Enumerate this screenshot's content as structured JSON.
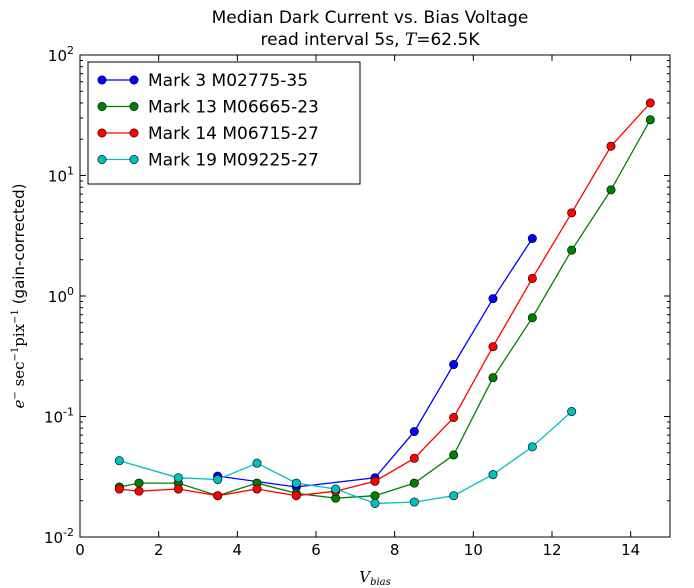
{
  "chart_data": {
    "type": "line",
    "title": "Median Dark Current vs. Bias Voltage",
    "subtitle": "read interval 5s, T=62.5K",
    "xlabel": "V_bias",
    "ylabel": "e⁻ sec⁻¹ pix⁻¹ (gain-corrected)",
    "xlim": [
      0,
      15
    ],
    "ylim": [
      0.01,
      100
    ],
    "yscale": "log",
    "xticks": [
      "0",
      "2",
      "4",
      "6",
      "8",
      "10",
      "12",
      "14"
    ],
    "yticks": [
      "10-2",
      "10-1",
      "100",
      "101",
      "102"
    ],
    "grid": false,
    "legend_position": "top-left",
    "series": [
      {
        "name": "Mark 3 M02775-35",
        "color": "#0000ff",
        "x": [
          3.5,
          5.5,
          7.5,
          8.5,
          9.5,
          10.5,
          11.5
        ],
        "y": [
          0.032,
          0.026,
          0.031,
          0.075,
          0.27,
          0.95,
          3.0
        ]
      },
      {
        "name": "Mark 13 M06665-23",
        "color": "#008000",
        "x": [
          1.0,
          1.5,
          2.5,
          3.5,
          4.5,
          5.5,
          6.5,
          7.5,
          8.5,
          9.5,
          10.5,
          11.5,
          12.5,
          13.5,
          14.5
        ],
        "y": [
          0.026,
          0.028,
          0.028,
          0.022,
          0.028,
          0.023,
          0.021,
          0.022,
          0.028,
          0.048,
          0.21,
          0.66,
          2.4,
          7.6,
          29
        ]
      },
      {
        "name": "Mark 14 M06715-27",
        "color": "#ff0000",
        "x": [
          1.0,
          1.5,
          2.5,
          3.5,
          4.5,
          5.5,
          6.5,
          7.5,
          8.5,
          9.5,
          10.5,
          11.5,
          12.5,
          13.5,
          14.5
        ],
        "y": [
          0.025,
          0.024,
          0.025,
          0.022,
          0.025,
          0.022,
          0.024,
          0.029,
          0.045,
          0.098,
          0.38,
          1.4,
          4.9,
          17.5,
          40
        ]
      },
      {
        "name": "Mark 19 M09225-27",
        "color": "#00bfbf",
        "x": [
          1.0,
          2.5,
          3.5,
          4.5,
          5.5,
          6.5,
          7.5,
          8.5,
          9.5,
          10.5,
          11.5,
          12.5
        ],
        "y": [
          0.043,
          0.031,
          0.03,
          0.041,
          0.028,
          0.025,
          0.019,
          0.0195,
          0.022,
          0.033,
          0.056,
          0.11
        ]
      }
    ]
  }
}
